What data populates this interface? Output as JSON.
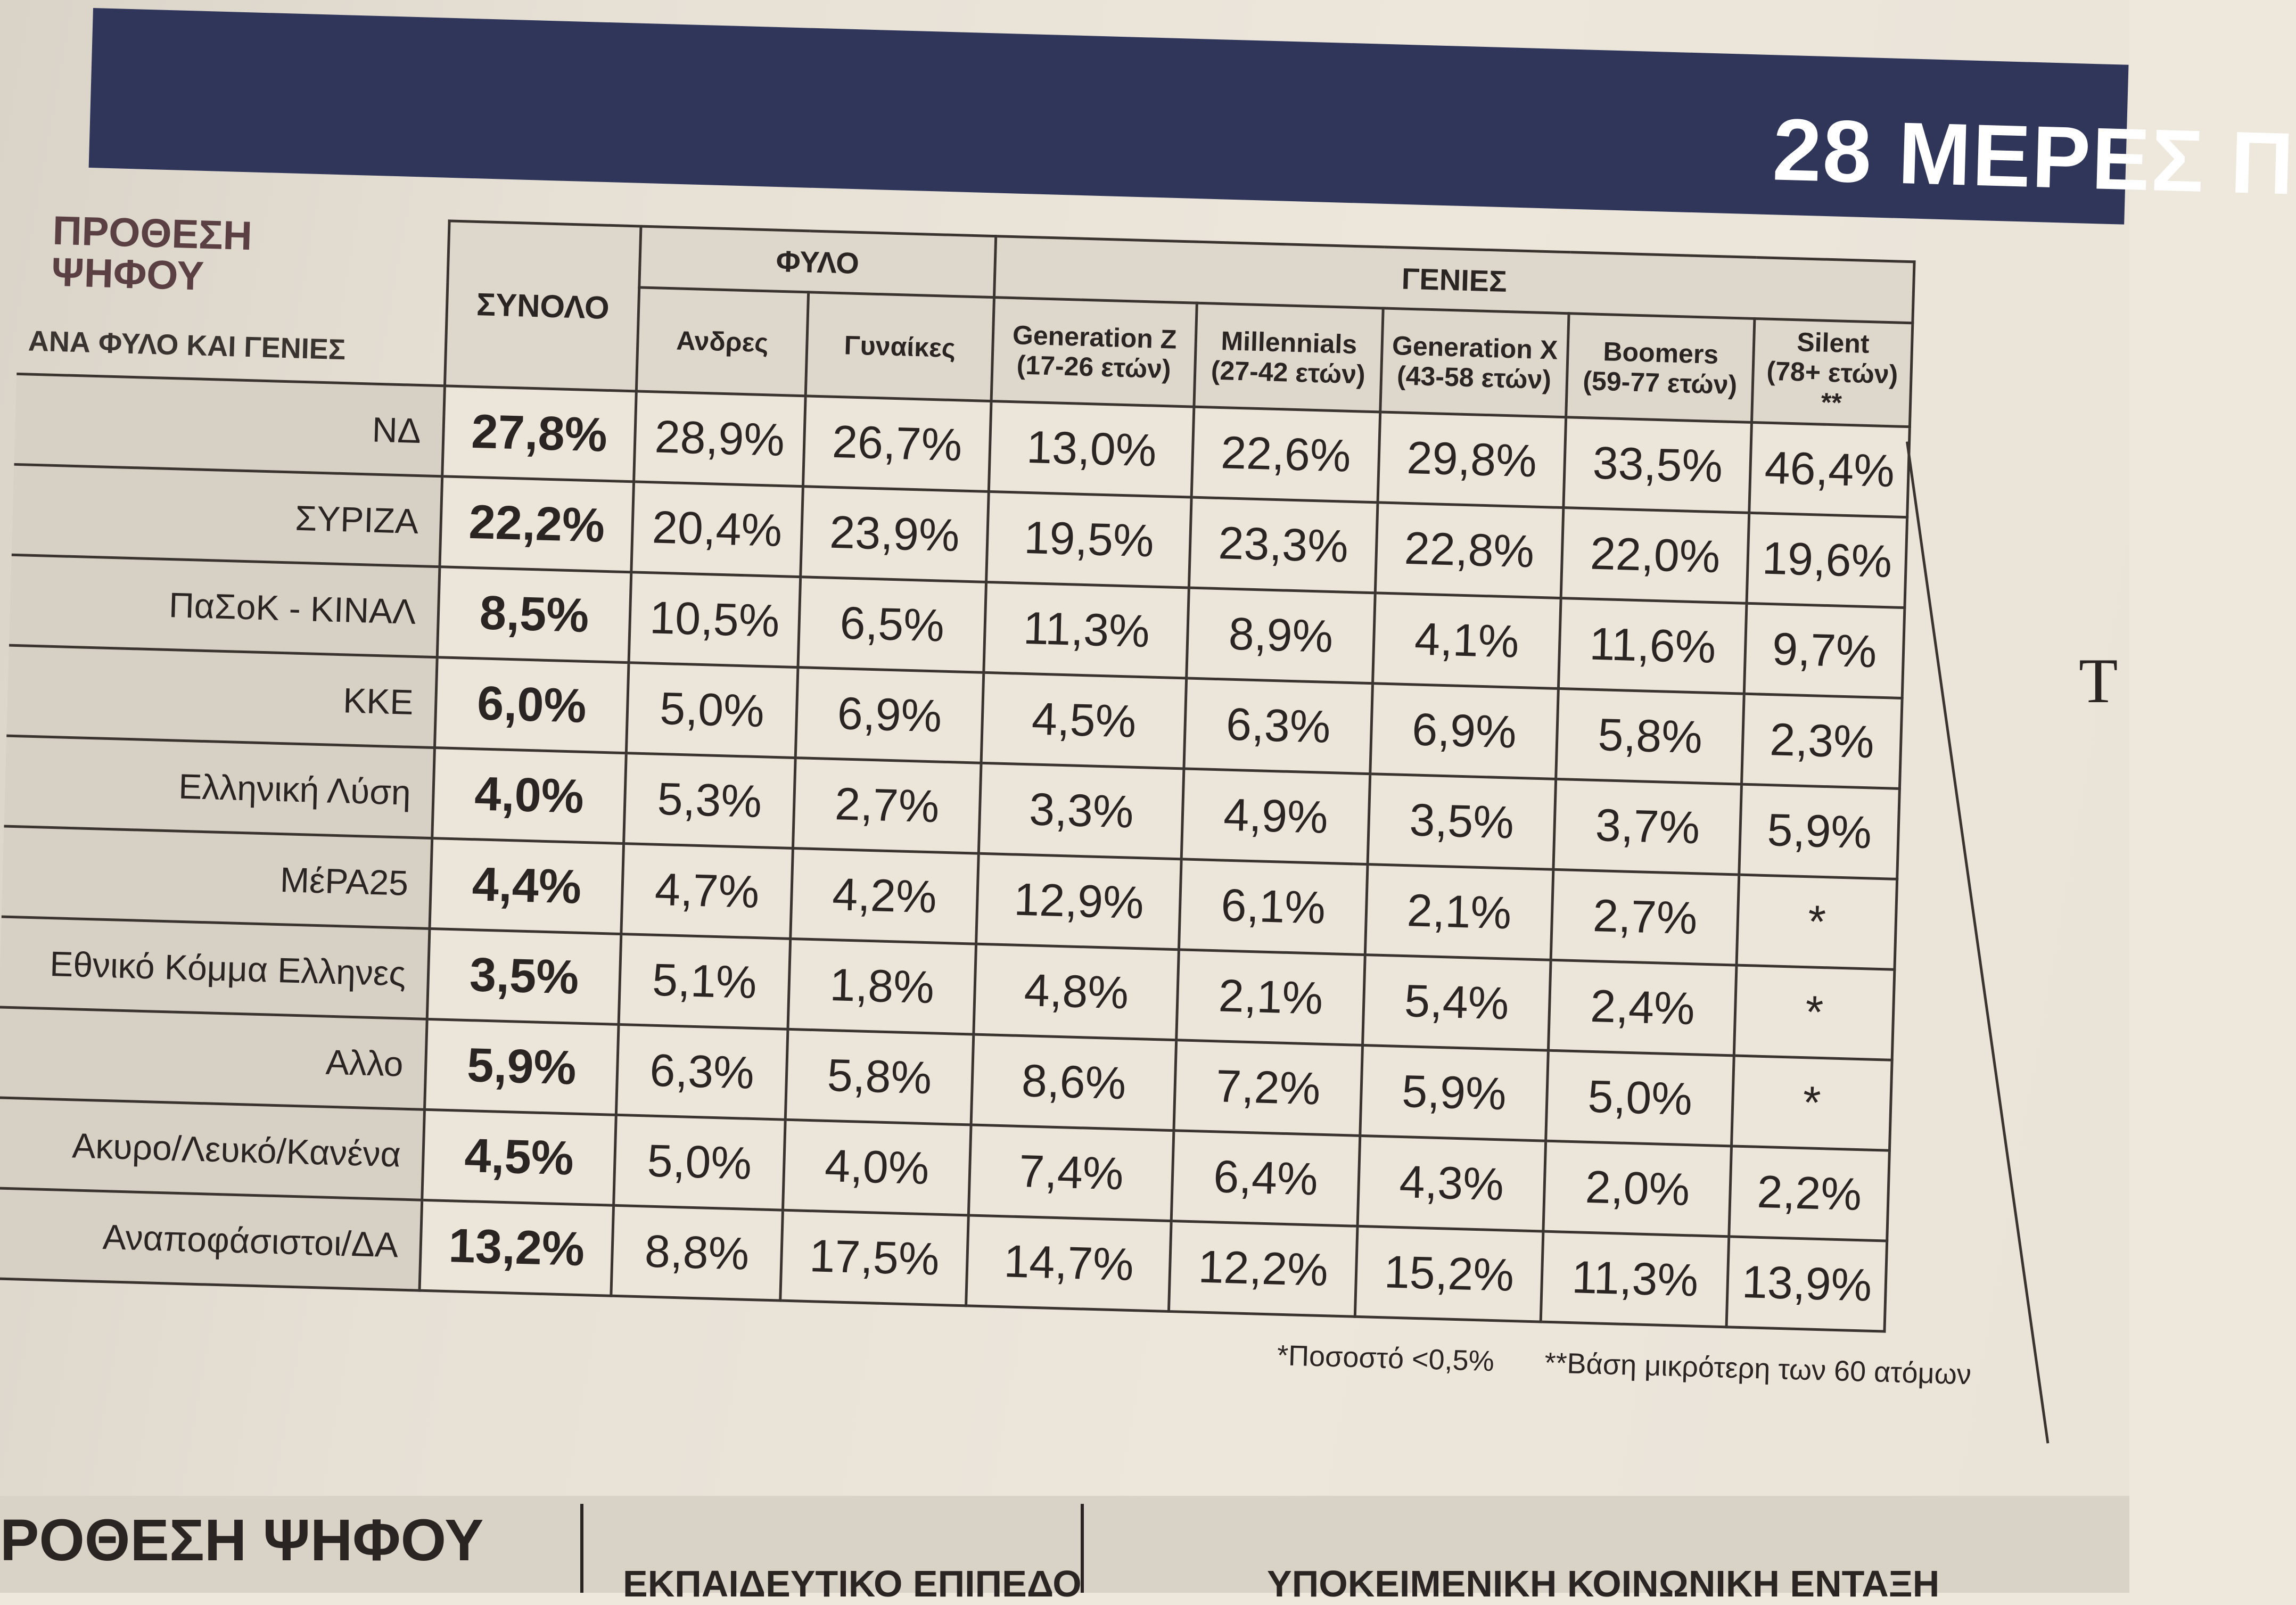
{
  "header": {
    "band_title": "28 ΜΕΡΕΣ Π"
  },
  "table": {
    "title_line1": "ΠΡΟΘΕΣΗ",
    "title_line2": "ΨΗΦΟΥ",
    "subtitle": "ΑΝΑ ΦΥΛΟ ΚΑΙ ΓΕΝΙΕΣ",
    "total_header": "ΣΥΝΟΛΟ",
    "group_gender": "ΦΥΛΟ",
    "group_generations": "ΓΕΝΙΕΣ",
    "columns": [
      {
        "line1": "Ανδρες",
        "line2": ""
      },
      {
        "line1": "Γυναίκες",
        "line2": ""
      },
      {
        "line1": "Generation Z",
        "line2": "(17-26 ετών)"
      },
      {
        "line1": "Millennials",
        "line2": "(27-42 ετών)"
      },
      {
        "line1": "Generation X",
        "line2": "(43-58 ετών)"
      },
      {
        "line1": "Boomers",
        "line2": "(59-77 ετών)"
      },
      {
        "line1": "Silent",
        "line2": "(78+ ετών) **"
      }
    ],
    "rows": [
      {
        "label": "ΝΔ",
        "total": "27,8%",
        "values": [
          "28,9%",
          "26,7%",
          "13,0%",
          "22,6%",
          "29,8%",
          "33,5%",
          "46,4%"
        ]
      },
      {
        "label": "ΣΥΡΙΖΑ",
        "total": "22,2%",
        "values": [
          "20,4%",
          "23,9%",
          "19,5%",
          "23,3%",
          "22,8%",
          "22,0%",
          "19,6%"
        ]
      },
      {
        "label": "ΠαΣοΚ - ΚΙΝΑΛ",
        "total": "8,5%",
        "values": [
          "10,5%",
          "6,5%",
          "11,3%",
          "8,9%",
          "4,1%",
          "11,6%",
          "9,7%"
        ]
      },
      {
        "label": "ΚΚΕ",
        "total": "6,0%",
        "values": [
          "5,0%",
          "6,9%",
          "4,5%",
          "6,3%",
          "6,9%",
          "5,8%",
          "2,3%"
        ]
      },
      {
        "label": "Ελληνική Λύση",
        "total": "4,0%",
        "values": [
          "5,3%",
          "2,7%",
          "3,3%",
          "4,9%",
          "3,5%",
          "3,7%",
          "5,9%"
        ]
      },
      {
        "label": "ΜέΡΑ25",
        "total": "4,4%",
        "values": [
          "4,7%",
          "4,2%",
          "12,9%",
          "6,1%",
          "2,1%",
          "2,7%",
          "*"
        ]
      },
      {
        "label": "Εθνικό Κόμμα Ελληνες",
        "total": "3,5%",
        "values": [
          "5,1%",
          "1,8%",
          "4,8%",
          "2,1%",
          "5,4%",
          "2,4%",
          "*"
        ]
      },
      {
        "label": "Αλλο",
        "total": "5,9%",
        "values": [
          "6,3%",
          "5,8%",
          "8,6%",
          "7,2%",
          "5,9%",
          "5,0%",
          "*"
        ]
      },
      {
        "label": "Ακυρο/Λευκό/Κανένα",
        "total": "4,5%",
        "values": [
          "5,0%",
          "4,0%",
          "7,4%",
          "6,4%",
          "4,3%",
          "2,0%",
          "2,2%"
        ]
      },
      {
        "label": "Αναποφάσιστοι/ΔΑ",
        "total": "13,2%",
        "values": [
          "8,8%",
          "17,5%",
          "14,7%",
          "12,2%",
          "15,2%",
          "11,3%",
          "13,9%"
        ]
      }
    ],
    "footnote_1": "*Ποσοστό <0,5%",
    "footnote_2": "**Βάση μικρότερη των 60 ατόμων"
  },
  "side": {
    "letter": "Τ"
  },
  "bottom": {
    "title": "ΡΟΘΕΣΗ ΨΗΦΟΥ",
    "section_2": "ΕΚΠΑΙΔΕΥΤΙΚΟ ΕΠΙΠΕΔΟ",
    "section_3": "ΥΠΟΚΕΙΜΕΝΙΚΗ ΚΟΙΝΩΝΙΚΗ ΕΝΤΑΞΗ"
  }
}
